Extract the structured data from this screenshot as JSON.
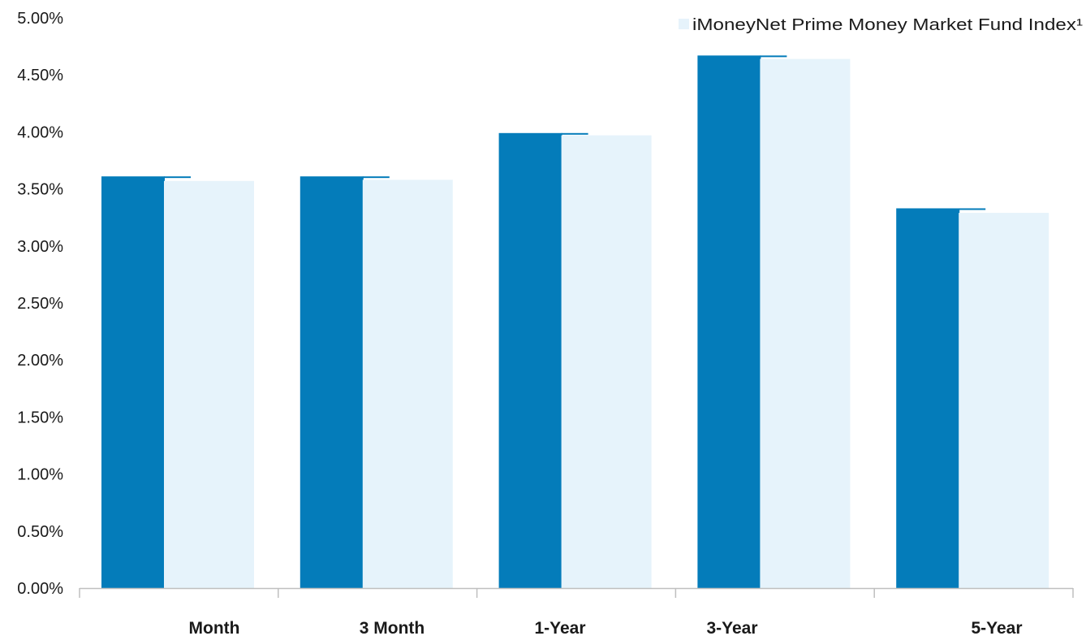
{
  "chart_data": {
    "type": "bar",
    "categories": [
      "Month",
      "3 Month",
      "1-Year",
      "3-Year",
      "5-Year"
    ],
    "series": [
      {
        "values": [
          3.61,
          3.61,
          3.99,
          4.67,
          3.33
        ],
        "color": "#047cba"
      },
      {
        "name": "iMoneyNet Prime Money Market Fund Index¹",
        "values": [
          3.57,
          3.58,
          3.97,
          4.64,
          3.29
        ],
        "color": "#e6f3fb"
      }
    ],
    "title": "",
    "xlabel": "",
    "ylabel": "",
    "ylim": [
      0,
      5
    ],
    "yticks": [
      0,
      0.5,
      1.0,
      1.5,
      2.0,
      2.5,
      3.0,
      3.5,
      4.0,
      4.5,
      5.0
    ],
    "ytick_labels": [
      "0.00%",
      "0.50%",
      "1.00%",
      "1.50%",
      "2.00%",
      "2.50%",
      "3.00%",
      "3.50%",
      "4.00%",
      "4.50%",
      "5.00%"
    ],
    "grid": false,
    "legend_position": "top-right",
    "axis_color": "#bfbfbf"
  }
}
